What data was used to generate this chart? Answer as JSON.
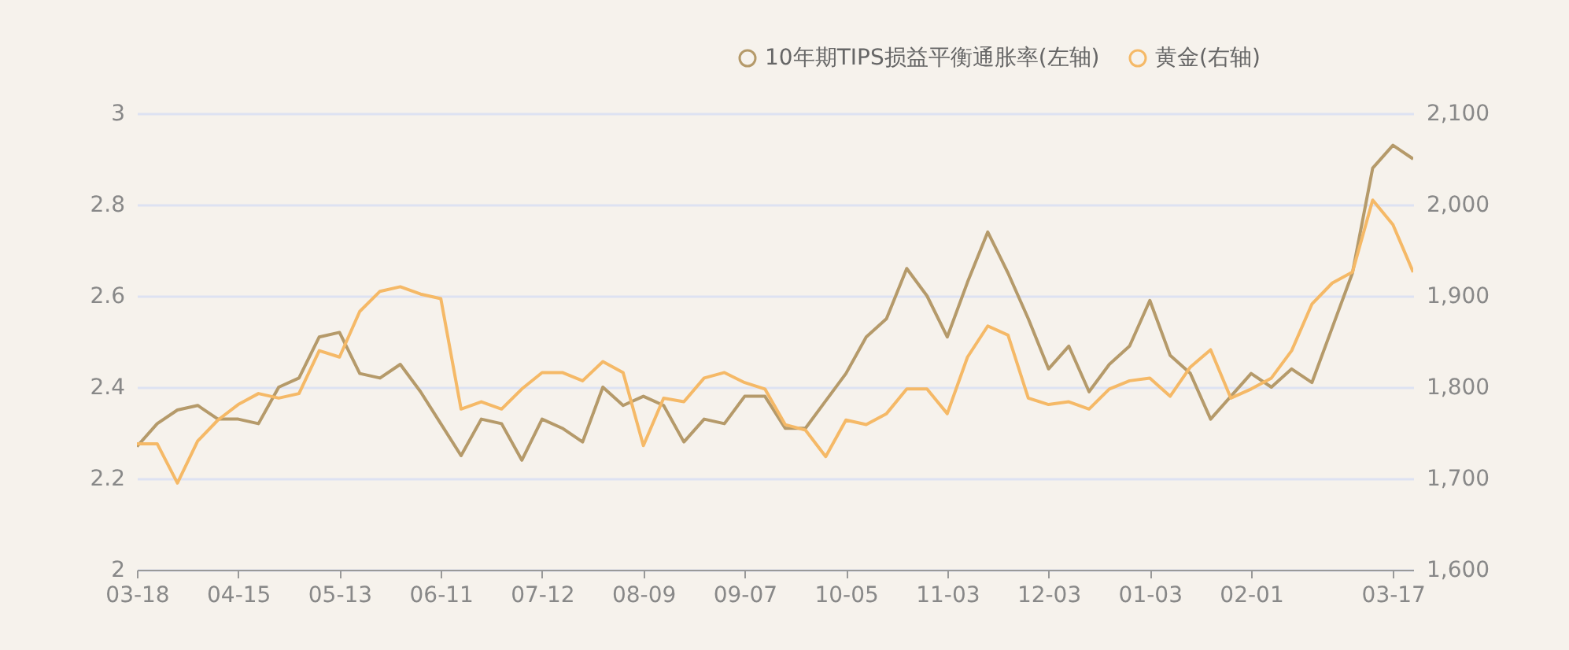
{
  "chart_data": {
    "type": "line",
    "categories": [
      "03-18",
      null,
      null,
      null,
      null,
      "04-15",
      null,
      null,
      null,
      null,
      "05-13",
      null,
      null,
      null,
      null,
      "06-11",
      null,
      null,
      null,
      null,
      "07-12",
      null,
      null,
      null,
      null,
      "08-09",
      null,
      null,
      null,
      null,
      "09-07",
      null,
      null,
      null,
      null,
      "10-05",
      null,
      null,
      null,
      null,
      "11-03",
      null,
      null,
      null,
      null,
      "12-03",
      null,
      null,
      null,
      null,
      "01-03",
      null,
      null,
      null,
      null,
      "02-01",
      null,
      null,
      null,
      null,
      null,
      null,
      "03-17",
      null
    ],
    "series": [
      {
        "name": "10年期TIPS损益平衡通胀率(左轴)",
        "color": "#b59a6a",
        "values": [
          2.27,
          2.32,
          2.35,
          2.36,
          2.33,
          2.33,
          2.32,
          2.4,
          2.42,
          2.51,
          2.52,
          2.43,
          2.42,
          2.45,
          2.39,
          2.32,
          2.25,
          2.33,
          2.32,
          2.24,
          2.33,
          2.31,
          2.28,
          2.4,
          2.36,
          2.38,
          2.36,
          2.28,
          2.33,
          2.32,
          2.38,
          2.38,
          2.31,
          2.31,
          2.37,
          2.43,
          2.51,
          2.55,
          2.66,
          2.6,
          2.51,
          2.63,
          2.74,
          2.65,
          2.55,
          2.44,
          2.49,
          2.39,
          2.45,
          2.49,
          2.59,
          2.47,
          2.43,
          2.33,
          2.38,
          2.43,
          2.4,
          2.44,
          2.41,
          2.53,
          2.65,
          2.88,
          2.93,
          2.9
        ]
      },
      {
        "name": "黄金(右轴)",
        "color": "#f5b967",
        "axis": "y2",
        "values": [
          1738,
          1738,
          1695,
          1741,
          1764,
          1781,
          1793,
          1788,
          1793,
          1840,
          1833,
          1883,
          1905,
          1910,
          1902,
          1897,
          1776,
          1784,
          1776,
          1798,
          1816,
          1816,
          1807,
          1828,
          1816,
          1736,
          1788,
          1784,
          1810,
          1816,
          1805,
          1798,
          1759,
          1753,
          1724,
          1764,
          1759,
          1771,
          1798,
          1798,
          1771,
          1833,
          1867,
          1857,
          1788,
          1781,
          1784,
          1776,
          1798,
          1807,
          1810,
          1790,
          1822,
          1841,
          1788,
          1798,
          1810,
          1840,
          1891,
          1914,
          1926,
          2005,
          1978,
          1926
        ]
      }
    ],
    "ylim": [
      2,
      3
    ],
    "yticks": [
      2,
      2.2,
      2.4,
      2.6,
      2.8,
      3
    ],
    "y2lim": [
      1600,
      2100
    ],
    "y2ticks": [
      {
        "value": 1600,
        "label": "1,600"
      },
      {
        "value": 1700,
        "label": "1,700"
      },
      {
        "value": 1800,
        "label": "1,800"
      },
      {
        "value": 1900,
        "label": "1,900"
      },
      {
        "value": 2000,
        "label": "2,000"
      },
      {
        "value": 2100,
        "label": "2,100"
      }
    ],
    "grid": "y",
    "legend": "top right"
  }
}
